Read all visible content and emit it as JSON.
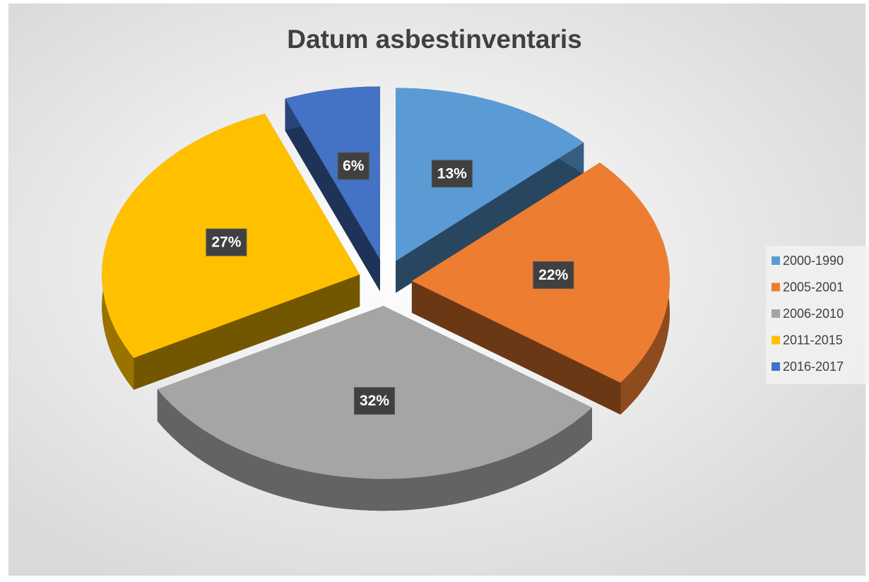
{
  "chart_data": {
    "type": "pie",
    "title": "Datum asbestinventaris",
    "categories": [
      "2000-1990",
      "2005-2001",
      "2006-2010",
      "2011-2015",
      "2016-2017"
    ],
    "values": [
      13,
      22,
      32,
      27,
      6
    ],
    "value_labels": [
      "13%",
      "22%",
      "32%",
      "27%",
      "6%"
    ],
    "colors": [
      "#5b9bd5",
      "#ed7d31",
      "#a5a5a5",
      "#ffc000",
      "#4472c4"
    ],
    "legend": "right"
  }
}
